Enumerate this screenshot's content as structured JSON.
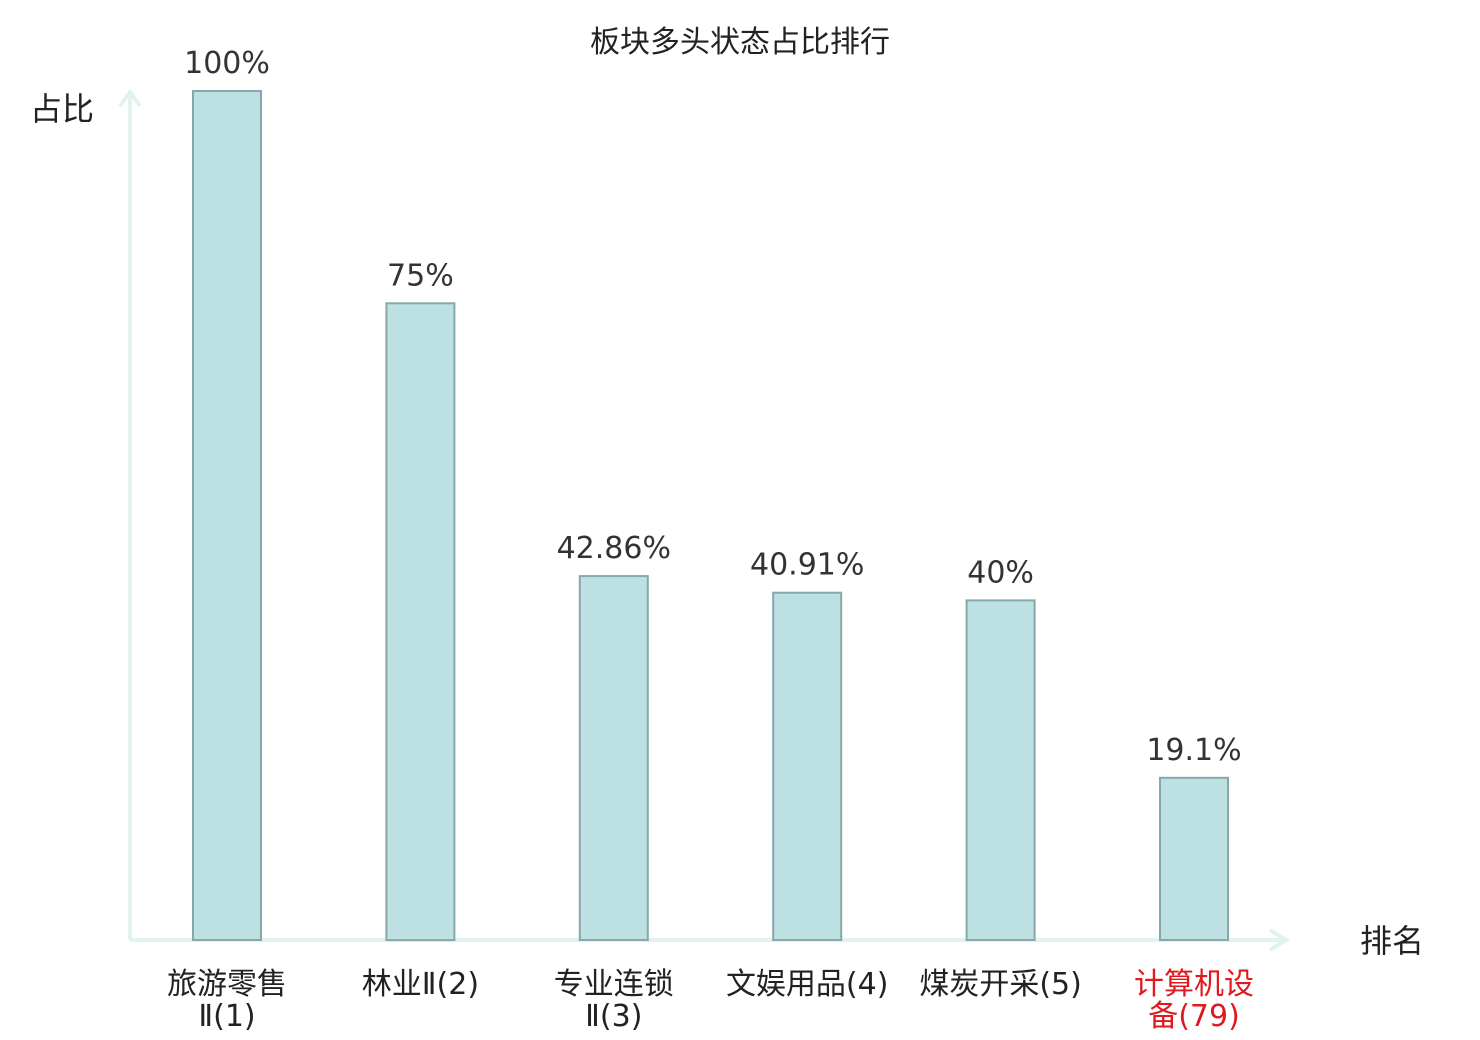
{
  "chart_data": {
    "type": "bar",
    "title": "板块多头状态占比排行",
    "xlabel": "排名",
    "ylabel": "占比",
    "ylim": [
      0,
      100
    ],
    "grid": false,
    "categories": [
      {
        "name": "旅游零售Ⅱ",
        "rank": "(1)",
        "lines": [
          "旅游零售",
          "Ⅱ(1)"
        ],
        "highlight": false
      },
      {
        "name": "林业Ⅱ",
        "rank": "(2)",
        "lines": [
          "林业Ⅱ(2)"
        ],
        "highlight": false
      },
      {
        "name": "专业连锁Ⅱ",
        "rank": "(3)",
        "lines": [
          "专业连锁",
          "Ⅱ(3)"
        ],
        "highlight": false
      },
      {
        "name": "文娱用品",
        "rank": "(4)",
        "lines": [
          "文娱用品(4)"
        ],
        "highlight": false
      },
      {
        "name": "煤炭开采",
        "rank": "(5)",
        "lines": [
          "煤炭开采(5)"
        ],
        "highlight": false
      },
      {
        "name": "计算机设备",
        "rank": "(79)",
        "lines": [
          "计算机设",
          "备(79)"
        ],
        "highlight": true
      }
    ],
    "values": [
      100,
      75,
      42.86,
      40.91,
      40,
      19.1
    ],
    "value_labels": [
      "100%",
      "75%",
      "42.86%",
      "40.91%",
      "40%",
      "19.1%"
    ],
    "colors": {
      "bar_fill": "#bde0e3",
      "bar_stroke": "#86a8ab",
      "axis": "#e1f2ef",
      "highlight": "#e0191e"
    }
  }
}
